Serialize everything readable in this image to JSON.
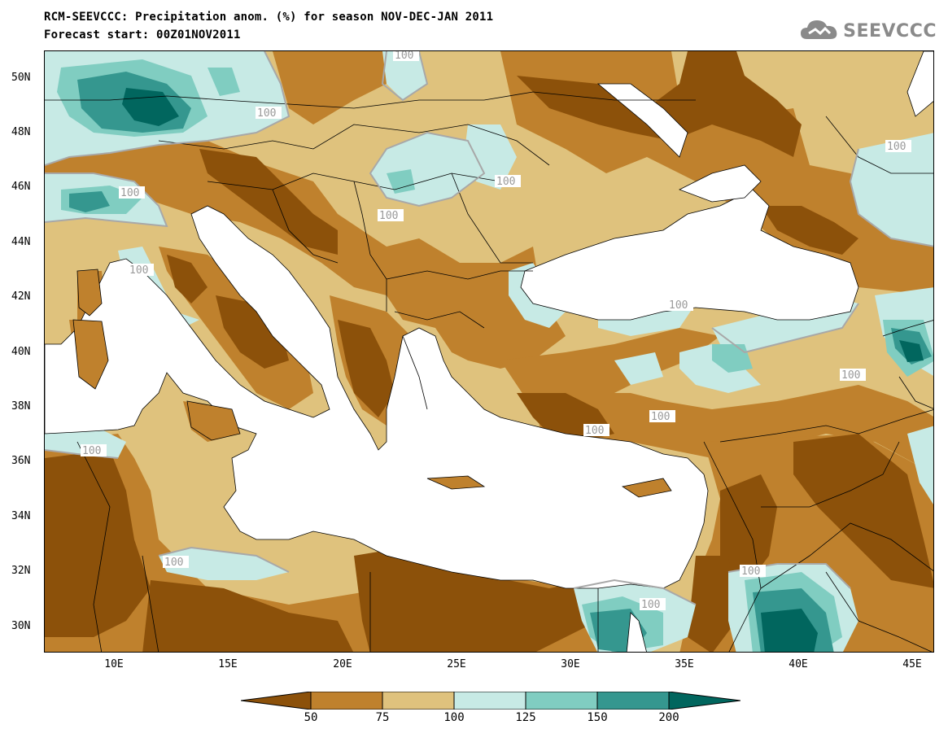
{
  "header": {
    "title_line1": "RCM-SEEVCCC: Precipitation anom. (%) for season NOV-DEC-JAN 2011",
    "title_line2": "Forecast start: 00Z01NOV2011",
    "logo_text": "SEEVCCC"
  },
  "map": {
    "lat_labels": [
      "50N",
      "48N",
      "46N",
      "44N",
      "42N",
      "40N",
      "38N",
      "36N",
      "34N",
      "32N",
      "30N"
    ],
    "lon_labels": [
      "10E",
      "15E",
      "20E",
      "25E",
      "30E",
      "35E",
      "40E",
      "45E"
    ],
    "contour_label": "100",
    "colors": {
      "sea": "#ffffff",
      "lt50": "#8c510a",
      "50_75": "#bf812d",
      "75_100": "#dfc27d",
      "100_125": "#c7eae5",
      "125_150": "#80cdc1",
      "150_200": "#35978f",
      "gt200": "#01665e",
      "contour": "#a8a8a8"
    }
  },
  "legend": {
    "labels": [
      "50",
      "75",
      "100",
      "125",
      "150",
      "200"
    ],
    "colors": [
      "#8c510a",
      "#bf812d",
      "#dfc27d",
      "#c7eae5",
      "#80cdc1",
      "#35978f",
      "#01665e"
    ]
  }
}
